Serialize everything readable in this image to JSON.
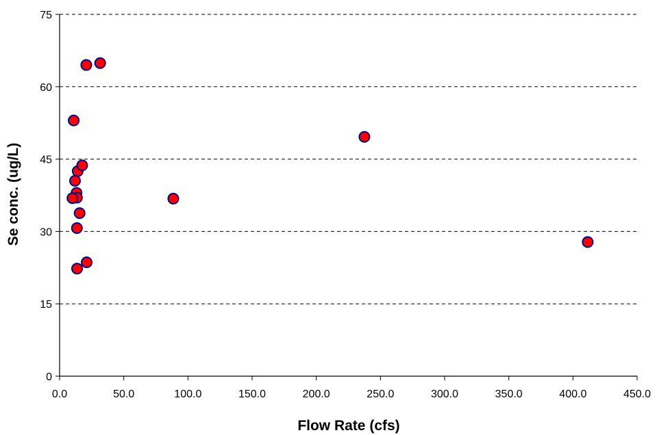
{
  "chart_data": {
    "type": "scatter",
    "title": "",
    "xlabel": "Flow Rate (cfs)",
    "ylabel": "Se conc. (ug/L)",
    "xlim": [
      0,
      450
    ],
    "ylim": [
      0,
      75
    ],
    "x_ticks": [
      "0.0",
      "50.0",
      "100.0",
      "150.0",
      "200.0",
      "250.0",
      "300.0",
      "350.0",
      "400.0",
      "450.0"
    ],
    "y_ticks": [
      "0",
      "15",
      "30",
      "45",
      "60",
      "75"
    ],
    "x_tick_values": [
      0,
      50,
      100,
      150,
      200,
      250,
      300,
      350,
      400,
      450
    ],
    "y_tick_values": [
      0,
      15,
      30,
      45,
      60,
      75
    ],
    "grid": "horizontal dashed",
    "legend": "none",
    "series": [
      {
        "x": [
          20.8,
          31.6,
          11.0,
          14.1,
          17.6,
          13.2,
          12.0,
          13.5,
          10.0,
          15.6,
          13.5,
          21.1,
          13.6,
          88.6,
          237.5,
          411.5
        ],
        "y": [
          64.5,
          64.9,
          53.0,
          42.5,
          43.7,
          38.0,
          40.5,
          37.0,
          36.9,
          33.8,
          30.7,
          23.6,
          22.3,
          36.8,
          49.6,
          27.8
        ]
      }
    ],
    "marker_fill": "#ff0000",
    "marker_stroke": "#000080"
  }
}
